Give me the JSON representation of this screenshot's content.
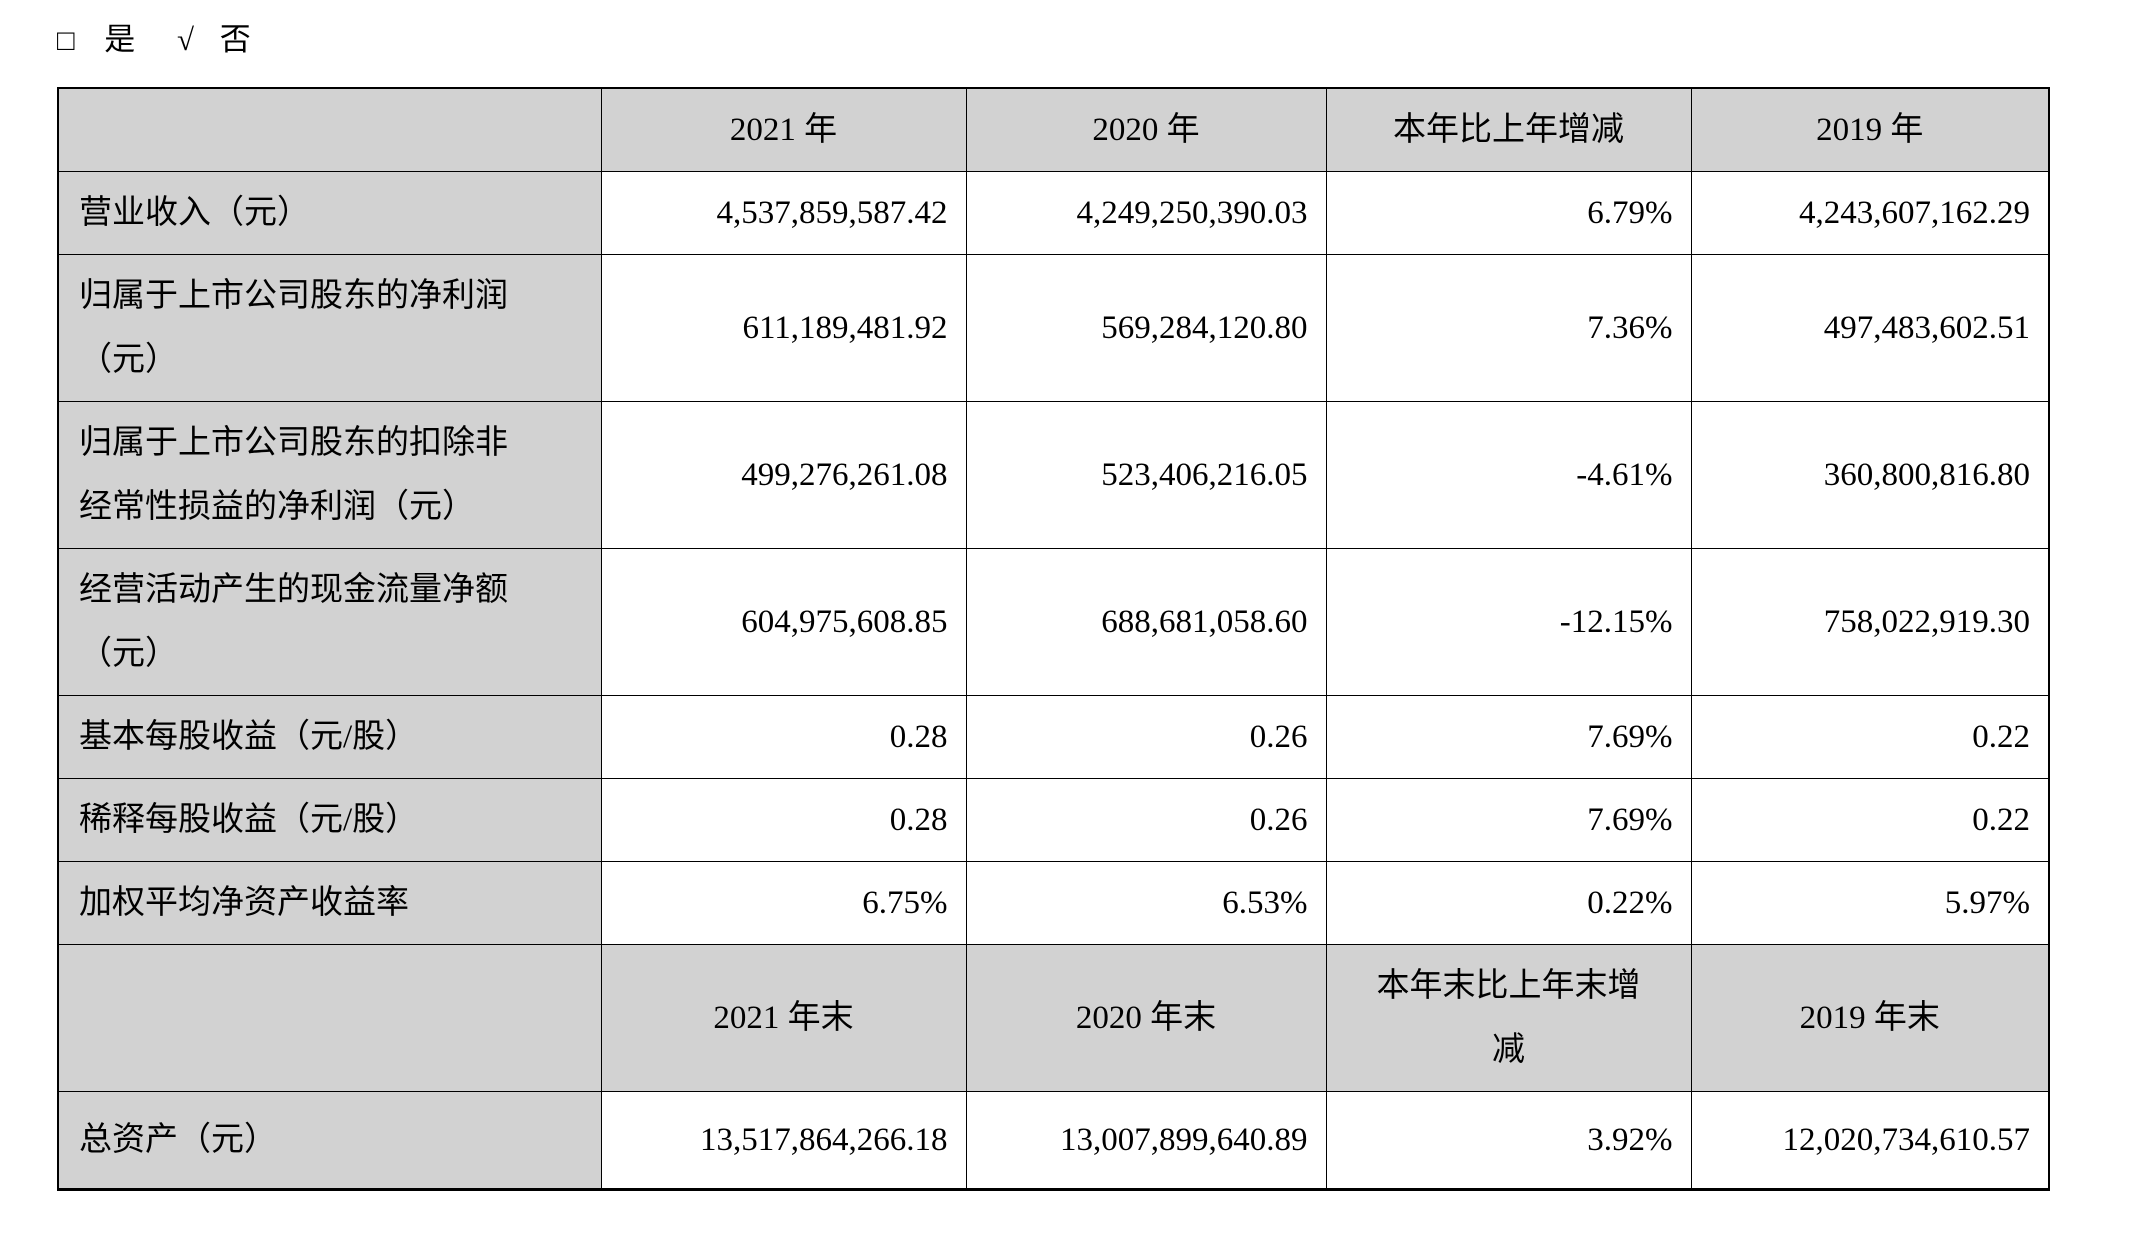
{
  "checkline": {
    "box": "□",
    "yes": "是",
    "check": "√",
    "no": "否"
  },
  "table": {
    "rows": [
      {
        "type": "header",
        "cells": [
          "",
          "2021 年",
          "2020 年",
          "本年比上年增减",
          "2019 年"
        ]
      },
      {
        "type": "data",
        "label": "营业收入（元）",
        "values": [
          "4,537,859,587.42",
          "4,249,250,390.03",
          "6.79%",
          "4,243,607,162.29"
        ]
      },
      {
        "type": "data",
        "label": "归属于上市公司股东的净利润\n（元）",
        "values": [
          "611,189,481.92",
          "569,284,120.80",
          "7.36%",
          "497,483,602.51"
        ]
      },
      {
        "type": "data",
        "label": "归属于上市公司股东的扣除非\n经常性损益的净利润（元）",
        "values": [
          "499,276,261.08",
          "523,406,216.05",
          "-4.61%",
          "360,800,816.80"
        ]
      },
      {
        "type": "data",
        "label": "经营活动产生的现金流量净额\n（元）",
        "values": [
          "604,975,608.85",
          "688,681,058.60",
          "-12.15%",
          "758,022,919.30"
        ]
      },
      {
        "type": "data",
        "label": "基本每股收益（元/股）",
        "values": [
          "0.28",
          "0.26",
          "7.69%",
          "0.22"
        ]
      },
      {
        "type": "data",
        "label": "稀释每股收益（元/股）",
        "values": [
          "0.28",
          "0.26",
          "7.69%",
          "0.22"
        ]
      },
      {
        "type": "data",
        "label": "加权平均净资产收益率",
        "values": [
          "6.75%",
          "6.53%",
          "0.22%",
          "5.97%"
        ]
      },
      {
        "type": "header",
        "cells": [
          "",
          "2021 年末",
          "2020 年末",
          "本年末比上年末增\n减",
          "2019 年末"
        ]
      },
      {
        "type": "data",
        "label": "总资产（元）",
        "values": [
          "13,517,864,266.18",
          "13,007,899,640.89",
          "3.92%",
          "12,020,734,610.57"
        ]
      }
    ],
    "colors": {
      "header_bg": "#d2d2d2",
      "label_bg": "#d2d2d2",
      "border": "#000000"
    }
  }
}
